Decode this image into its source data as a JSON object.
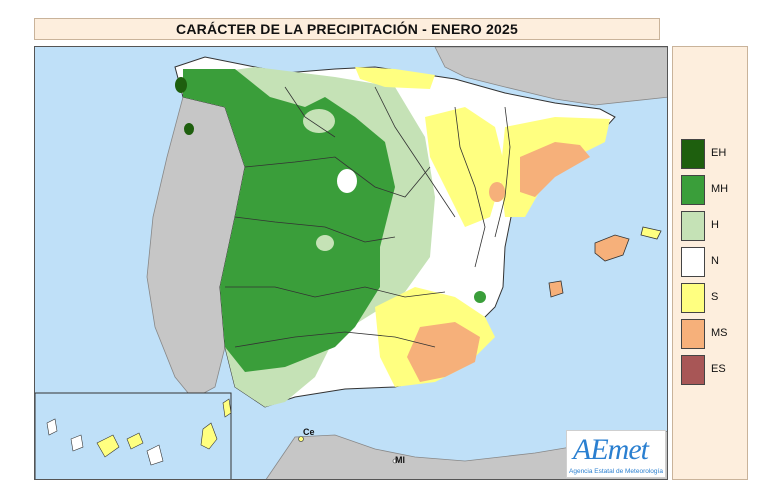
{
  "title": "CARÁCTER DE LA PRECIPITACIÓN - ENERO 2025",
  "legend": [
    {
      "code": "EH",
      "color": "#1e5f0e"
    },
    {
      "code": "MH",
      "color": "#3a9e3a"
    },
    {
      "code": "H",
      "color": "#c5e2b6"
    },
    {
      "code": "N",
      "color": "#ffffff"
    },
    {
      "code": "S",
      "color": "#ffff80"
    },
    {
      "code": "MS",
      "color": "#f6b07a"
    },
    {
      "code": "ES",
      "color": "#a85656"
    }
  ],
  "cities": {
    "ceuta": "Ce",
    "melilla": "Ml"
  },
  "logo": {
    "word": "AEmet",
    "subtitle": "Agencia Estatal de Meteorología"
  },
  "colors": {
    "sea": "#bfe0f8",
    "foreign_land": "#c6c6c6",
    "title_bg": "#fdeedd"
  }
}
